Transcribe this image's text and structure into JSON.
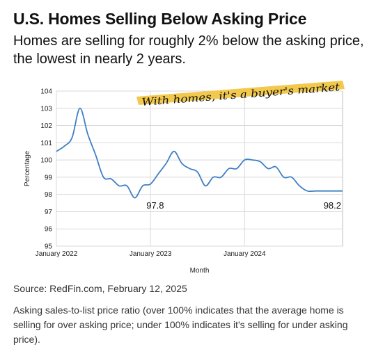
{
  "header": {
    "title": "U.S. Homes Selling Below Asking Price",
    "subtitle": "Homes are selling for roughly 2% below the asking price, the lowest in nearly 2 years."
  },
  "footer": {
    "source": "Source: RedFin.com, February 12, 2025",
    "note": "Asking sales-to-list price ratio (over 100% indicates that the average home is selling for over asking price; under 100% indicates it's selling for under asking price)."
  },
  "colors": {
    "line": "#3f7fc4",
    "highlight": "#f2c94c",
    "grid": "#d9d9d9"
  },
  "chart_data": {
    "type": "line",
    "xlabel": "Month",
    "ylabel": "Percentage",
    "ylim": [
      95,
      104
    ],
    "yticks": [
      "95",
      "96",
      "97",
      "98",
      "99",
      "100",
      "101",
      "102",
      "103",
      "104"
    ],
    "xticks": [
      {
        "label": "January 2022",
        "month": 0
      },
      {
        "label": "January 2023",
        "month": 12
      },
      {
        "label": "January 2024",
        "month": 24
      }
    ],
    "grid": true,
    "annotation": "With homes, it's a buyer's market",
    "data_labels": [
      {
        "text": "97.8",
        "month": 12.6
      },
      {
        "text": "98.2",
        "month": 36.5
      }
    ],
    "series": [
      {
        "x": [
          0,
          1,
          2,
          3,
          4,
          5,
          6,
          7,
          8,
          9,
          10,
          11,
          12,
          13,
          14,
          15,
          16,
          17,
          18,
          19,
          20,
          21,
          22,
          23,
          24,
          25,
          26,
          27,
          28,
          29,
          30,
          31,
          32,
          33,
          34,
          35,
          36,
          36.5
        ],
        "y": [
          100.5,
          100.8,
          101.3,
          103.0,
          101.5,
          100.3,
          99.0,
          98.9,
          98.5,
          98.5,
          97.8,
          98.5,
          98.6,
          99.2,
          99.8,
          100.5,
          99.8,
          99.5,
          99.3,
          98.5,
          99.0,
          99.0,
          99.5,
          99.5,
          100.0,
          100.0,
          99.9,
          99.5,
          99.6,
          99.0,
          99.0,
          98.5,
          98.2,
          98.2,
          98.2,
          98.2,
          98.2,
          98.2
        ]
      }
    ]
  }
}
